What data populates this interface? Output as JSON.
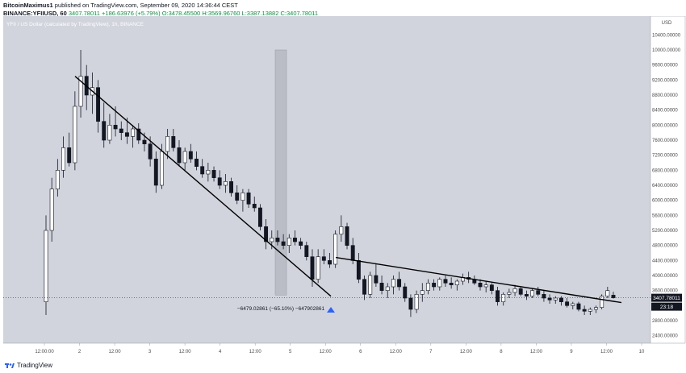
{
  "header": {
    "author": "BitcoinMaximus1",
    "published": "published on TradingView.com, September 09, 2020 14:36:44 CEST",
    "symbol_line_prefix": "BINANCE:YFIIUSD, 60",
    "last_value": "3407.78011",
    "change": "+186.63976 (+5.79%)",
    "ohlc": "O:3478.45500 H:3569.96760 L:3387.13882 C:3407.78011"
  },
  "footer": {
    "brand": "TradingView"
  },
  "chart_data": {
    "type": "candlestick",
    "title": "YFII / US Dollar (calculated by TradingView), 1h, BINANCE",
    "currency": "USD",
    "y_axis_title": "YFII / US Dollar (calculated by TradingView)",
    "ylim": [
      2200,
      10900
    ],
    "y_ticks": [
      "10400.00000",
      "10000.00000",
      "9600.00000",
      "9200.00000",
      "8800.00000",
      "8400.00000",
      "8000.00000",
      "7600.00000",
      "7200.00000",
      "6800.00000",
      "6400.00000",
      "6000.00000",
      "5600.00000",
      "5200.00000",
      "4800.00000",
      "4400.00000",
      "4000.00000",
      "3600.00000",
      "3200.00000",
      "2800.00000",
      "2400.00000"
    ],
    "x_ticks": [
      "12:00:00",
      "2",
      "12:00",
      "3",
      "12:00",
      "4",
      "12:00",
      "5",
      "12:00",
      "6",
      "12:00",
      "7",
      "12:00",
      "8",
      "12:00",
      "9",
      "12:00",
      "10"
    ],
    "last_price_label": "3407.78011",
    "countdown_label": "23:18",
    "measure_annotation": "−6479.02861 (−65.10%) −647902861",
    "background_color": "#d1d4dc",
    "up_color": "#ffffff",
    "down_color": "#131722",
    "trendlines": [
      {
        "name": "descending-trendline-1",
        "from": [
          "2-early",
          9300
        ],
        "to": [
          "5-12:00",
          3450
        ]
      },
      {
        "name": "descending-trendline-2",
        "from": [
          "5-14:00",
          4480
        ],
        "to": [
          "9-14:00",
          3280
        ]
      }
    ],
    "highlight_range": {
      "start": "4-21:00",
      "end": "4-23:00",
      "low": 3480,
      "high": 10000
    },
    "candles": [
      {
        "o": 3300,
        "h": 5600,
        "l": 2950,
        "c": 5200
      },
      {
        "o": 5200,
        "h": 6600,
        "l": 4900,
        "c": 6300
      },
      {
        "o": 6300,
        "h": 7100,
        "l": 6100,
        "c": 6800
      },
      {
        "o": 6800,
        "h": 7700,
        "l": 6600,
        "c": 7400
      },
      {
        "o": 7400,
        "h": 7800,
        "l": 6900,
        "c": 7000
      },
      {
        "o": 7000,
        "h": 8900,
        "l": 6800,
        "c": 8500
      },
      {
        "o": 8500,
        "h": 10000,
        "l": 8200,
        "c": 9300
      },
      {
        "o": 9300,
        "h": 9600,
        "l": 8400,
        "c": 8800
      },
      {
        "o": 8800,
        "h": 9400,
        "l": 8300,
        "c": 9000
      },
      {
        "o": 9000,
        "h": 9200,
        "l": 7800,
        "c": 8100
      },
      {
        "o": 8100,
        "h": 8600,
        "l": 7400,
        "c": 7600
      },
      {
        "o": 7600,
        "h": 8300,
        "l": 7500,
        "c": 8000
      },
      {
        "o": 8000,
        "h": 8500,
        "l": 7700,
        "c": 7900
      },
      {
        "o": 7900,
        "h": 8100,
        "l": 7600,
        "c": 7800
      },
      {
        "o": 7800,
        "h": 8200,
        "l": 7500,
        "c": 7700
      },
      {
        "o": 7700,
        "h": 8000,
        "l": 7400,
        "c": 7900
      },
      {
        "o": 7900,
        "h": 8050,
        "l": 7500,
        "c": 7600
      },
      {
        "o": 7600,
        "h": 7800,
        "l": 7300,
        "c": 7500
      },
      {
        "o": 7500,
        "h": 7700,
        "l": 6900,
        "c": 7100
      },
      {
        "o": 7100,
        "h": 7300,
        "l": 6200,
        "c": 6400
      },
      {
        "o": 6400,
        "h": 7500,
        "l": 6300,
        "c": 7300
      },
      {
        "o": 7300,
        "h": 7900,
        "l": 7100,
        "c": 7700
      },
      {
        "o": 7700,
        "h": 7900,
        "l": 7300,
        "c": 7400
      },
      {
        "o": 7400,
        "h": 7600,
        "l": 6900,
        "c": 7000
      },
      {
        "o": 7000,
        "h": 7400,
        "l": 6800,
        "c": 7300
      },
      {
        "o": 7300,
        "h": 7500,
        "l": 7000,
        "c": 7100
      },
      {
        "o": 7100,
        "h": 7300,
        "l": 6800,
        "c": 6900
      },
      {
        "o": 6900,
        "h": 7100,
        "l": 6600,
        "c": 6700
      },
      {
        "o": 6700,
        "h": 7000,
        "l": 6500,
        "c": 6800
      },
      {
        "o": 6800,
        "h": 6900,
        "l": 6500,
        "c": 6600
      },
      {
        "o": 6600,
        "h": 6800,
        "l": 6300,
        "c": 6400
      },
      {
        "o": 6400,
        "h": 6700,
        "l": 6200,
        "c": 6500
      },
      {
        "o": 6500,
        "h": 6600,
        "l": 6100,
        "c": 6200
      },
      {
        "o": 6200,
        "h": 6400,
        "l": 5900,
        "c": 6000
      },
      {
        "o": 6000,
        "h": 6300,
        "l": 5700,
        "c": 6200
      },
      {
        "o": 6200,
        "h": 6300,
        "l": 5800,
        "c": 5900
      },
      {
        "o": 5900,
        "h": 6100,
        "l": 5700,
        "c": 5800
      },
      {
        "o": 5800,
        "h": 5900,
        "l": 5200,
        "c": 5300
      },
      {
        "o": 5300,
        "h": 5500,
        "l": 4700,
        "c": 4900
      },
      {
        "o": 4900,
        "h": 5200,
        "l": 4700,
        "c": 5000
      },
      {
        "o": 5000,
        "h": 5200,
        "l": 4800,
        "c": 4900
      },
      {
        "o": 4900,
        "h": 5100,
        "l": 4700,
        "c": 4800
      },
      {
        "o": 4800,
        "h": 5100,
        "l": 4600,
        "c": 5000
      },
      {
        "o": 5000,
        "h": 5200,
        "l": 4800,
        "c": 4900
      },
      {
        "o": 4900,
        "h": 5000,
        "l": 4700,
        "c": 4800
      },
      {
        "o": 4800,
        "h": 4900,
        "l": 4400,
        "c": 4500
      },
      {
        "o": 4500,
        "h": 4700,
        "l": 3700,
        "c": 3900
      },
      {
        "o": 3900,
        "h": 4700,
        "l": 3800,
        "c": 4500
      },
      {
        "o": 4500,
        "h": 4700,
        "l": 4300,
        "c": 4400
      },
      {
        "o": 4400,
        "h": 4600,
        "l": 4200,
        "c": 4300
      },
      {
        "o": 4300,
        "h": 5200,
        "l": 4200,
        "c": 5100
      },
      {
        "o": 5100,
        "h": 5600,
        "l": 4900,
        "c": 5300
      },
      {
        "o": 5300,
        "h": 5400,
        "l": 4700,
        "c": 4800
      },
      {
        "o": 4800,
        "h": 5000,
        "l": 4300,
        "c": 4400
      },
      {
        "o": 4400,
        "h": 4600,
        "l": 3800,
        "c": 3900
      },
      {
        "o": 3900,
        "h": 4000,
        "l": 3350,
        "c": 3500
      },
      {
        "o": 3500,
        "h": 4100,
        "l": 3400,
        "c": 4000
      },
      {
        "o": 4000,
        "h": 4300,
        "l": 3700,
        "c": 3800
      },
      {
        "o": 3800,
        "h": 4000,
        "l": 3500,
        "c": 3600
      },
      {
        "o": 3600,
        "h": 3800,
        "l": 3400,
        "c": 3700
      },
      {
        "o": 3700,
        "h": 4000,
        "l": 3500,
        "c": 3900
      },
      {
        "o": 3900,
        "h": 4100,
        "l": 3600,
        "c": 3700
      },
      {
        "o": 3700,
        "h": 3800,
        "l": 3300,
        "c": 3400
      },
      {
        "o": 3400,
        "h": 3500,
        "l": 2900,
        "c": 3100
      },
      {
        "o": 3100,
        "h": 3600,
        "l": 3000,
        "c": 3500
      },
      {
        "o": 3500,
        "h": 3800,
        "l": 3300,
        "c": 3600
      },
      {
        "o": 3600,
        "h": 3900,
        "l": 3500,
        "c": 3800
      },
      {
        "o": 3800,
        "h": 3900,
        "l": 3600,
        "c": 3700
      },
      {
        "o": 3700,
        "h": 3950,
        "l": 3600,
        "c": 3900
      },
      {
        "o": 3900,
        "h": 4000,
        "l": 3700,
        "c": 3800
      },
      {
        "o": 3800,
        "h": 3950,
        "l": 3650,
        "c": 3750
      },
      {
        "o": 3750,
        "h": 3900,
        "l": 3600,
        "c": 3850
      },
      {
        "o": 3850,
        "h": 4050,
        "l": 3750,
        "c": 3950
      },
      {
        "o": 3950,
        "h": 4100,
        "l": 3800,
        "c": 3900
      },
      {
        "o": 3900,
        "h": 4000,
        "l": 3750,
        "c": 3800
      },
      {
        "o": 3800,
        "h": 3900,
        "l": 3600,
        "c": 3700
      },
      {
        "o": 3700,
        "h": 3850,
        "l": 3550,
        "c": 3750
      },
      {
        "o": 3750,
        "h": 3800,
        "l": 3500,
        "c": 3600
      },
      {
        "o": 3600,
        "h": 3700,
        "l": 3200,
        "c": 3300
      },
      {
        "o": 3300,
        "h": 3550,
        "l": 3200,
        "c": 3500
      },
      {
        "o": 3500,
        "h": 3650,
        "l": 3400,
        "c": 3550
      },
      {
        "o": 3550,
        "h": 3750,
        "l": 3450,
        "c": 3650
      },
      {
        "o": 3650,
        "h": 3700,
        "l": 3450,
        "c": 3500
      },
      {
        "o": 3500,
        "h": 3600,
        "l": 3350,
        "c": 3450
      },
      {
        "o": 3450,
        "h": 3650,
        "l": 3400,
        "c": 3600
      },
      {
        "o": 3600,
        "h": 3700,
        "l": 3450,
        "c": 3500
      },
      {
        "o": 3500,
        "h": 3600,
        "l": 3300,
        "c": 3400
      },
      {
        "o": 3400,
        "h": 3500,
        "l": 3250,
        "c": 3350
      },
      {
        "o": 3350,
        "h": 3450,
        "l": 3250,
        "c": 3400
      },
      {
        "o": 3400,
        "h": 3450,
        "l": 3200,
        "c": 3300
      },
      {
        "o": 3300,
        "h": 3400,
        "l": 3150,
        "c": 3200
      },
      {
        "o": 3200,
        "h": 3300,
        "l": 3100,
        "c": 3250
      },
      {
        "o": 3250,
        "h": 3300,
        "l": 3050,
        "c": 3100
      },
      {
        "o": 3100,
        "h": 3200,
        "l": 2950,
        "c": 3050
      },
      {
        "o": 3050,
        "h": 3150,
        "l": 2950,
        "c": 3100
      },
      {
        "o": 3100,
        "h": 3200,
        "l": 3000,
        "c": 3150
      },
      {
        "o": 3150,
        "h": 3500,
        "l": 3100,
        "c": 3450
      },
      {
        "o": 3450,
        "h": 3700,
        "l": 3400,
        "c": 3600
      },
      {
        "o": 3478,
        "h": 3570,
        "l": 3387,
        "c": 3408
      }
    ]
  }
}
